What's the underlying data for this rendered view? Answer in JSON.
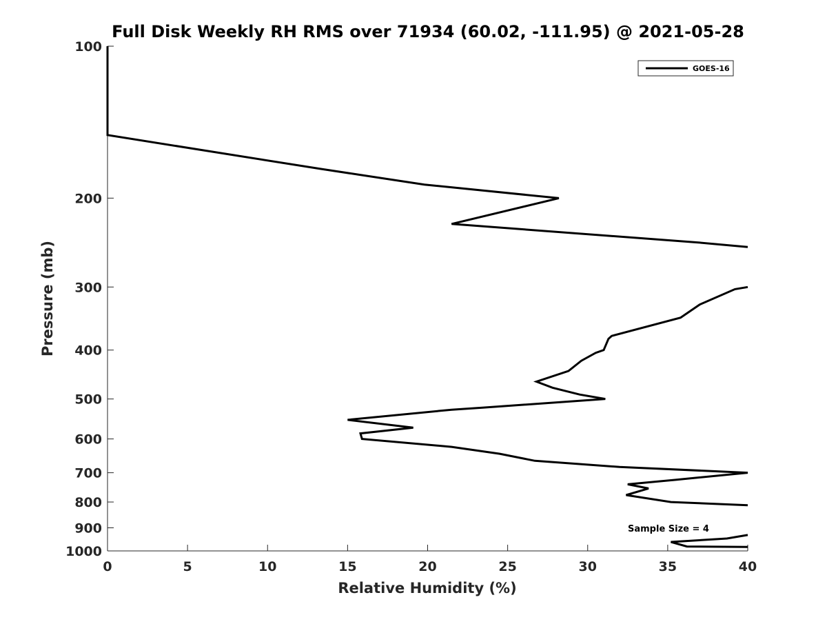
{
  "chart_data": {
    "type": "line",
    "title": "Full Disk Weekly RH RMS over 71934 (60.02, -111.95) @ 2021-05-28",
    "xlabel": "Relative Humidity (%)",
    "ylabel": "Pressure (mb)",
    "xlim": [
      0,
      40
    ],
    "ylim": [
      100,
      1000
    ],
    "yscale": "log",
    "y_reversed": true,
    "xticks": [
      0,
      5,
      10,
      15,
      20,
      25,
      30,
      35,
      40
    ],
    "yticks": [
      100,
      200,
      300,
      400,
      500,
      600,
      700,
      800,
      900,
      1000
    ],
    "grid": false,
    "legend_position": "top-right",
    "annotation": "Sample Size = 4",
    "series": [
      {
        "name": "GOES-16",
        "color": "#000000",
        "segments": [
          [
            [
              0,
              100
            ],
            [
              0,
              150
            ],
            [
              13.3,
              175
            ],
            [
              19.8,
              188
            ],
            [
              28.2,
              200
            ],
            [
              21.5,
              225
            ],
            [
              37.0,
              245
            ],
            [
              40,
              250
            ]
          ],
          [
            [
              40,
              300
            ],
            [
              39.2,
              303
            ],
            [
              37.0,
              325
            ],
            [
              35.8,
              345
            ],
            [
              31.5,
              375
            ],
            [
              31.3,
              380
            ],
            [
              31.0,
              400
            ],
            [
              30.5,
              405
            ],
            [
              29.6,
              420
            ],
            [
              28.8,
              440
            ],
            [
              26.8,
              462
            ],
            [
              27.8,
              475
            ],
            [
              29.5,
              490
            ],
            [
              31.1,
              500
            ],
            [
              23.5,
              520
            ],
            [
              21.5,
              525
            ],
            [
              15.0,
              550
            ],
            [
              19.1,
              570
            ],
            [
              15.8,
              585
            ],
            [
              15.9,
              600
            ],
            [
              21.5,
              622
            ],
            [
              24.5,
              642
            ],
            [
              26.7,
              663
            ],
            [
              32.0,
              682
            ],
            [
              40,
              700
            ],
            [
              35.5,
              723
            ],
            [
              32.5,
              738
            ],
            [
              33.8,
              752
            ],
            [
              32.4,
              775
            ],
            [
              35.2,
              800
            ],
            [
              40,
              812
            ]
          ],
          [
            [
              40,
              930
            ],
            [
              38.7,
              945
            ],
            [
              35.2,
              960
            ],
            [
              36.2,
              980
            ],
            [
              40,
              982
            ]
          ]
        ]
      }
    ]
  }
}
